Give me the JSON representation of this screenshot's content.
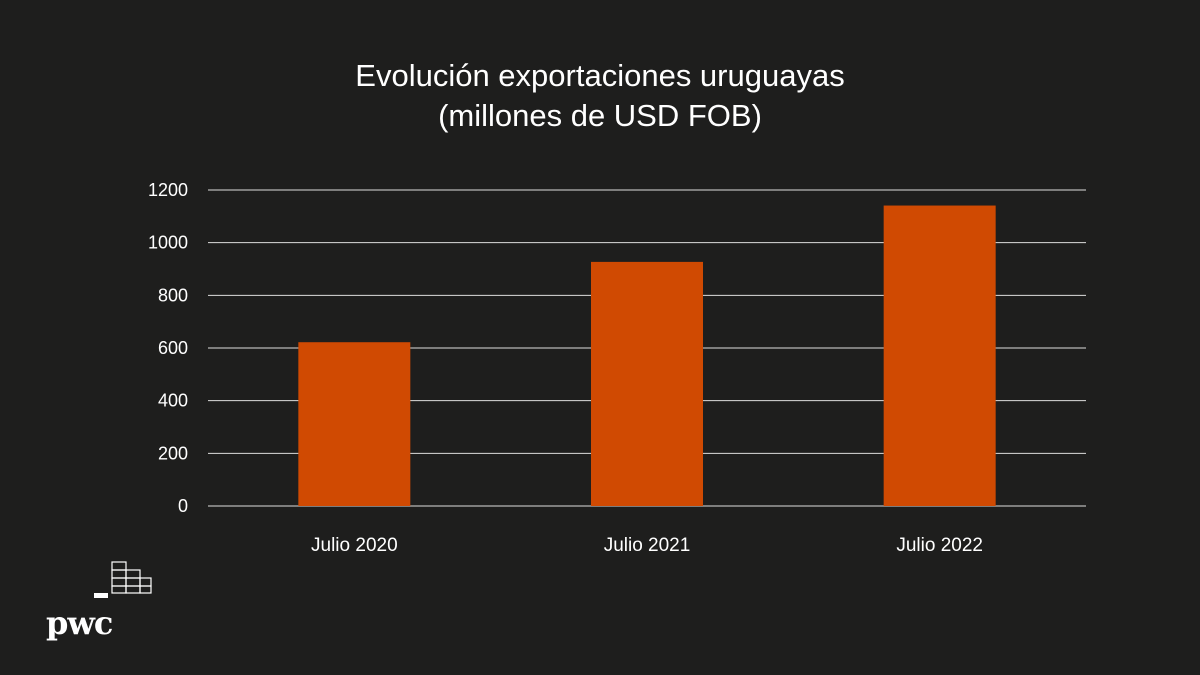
{
  "chart_data": {
    "type": "bar",
    "title": "Evolución exportaciones uruguayas",
    "subtitle": "(millones de USD FOB)",
    "categories": [
      "Julio 2020",
      "Julio 2021",
      "Julio 2022"
    ],
    "values": [
      622,
      927,
      1141
    ],
    "ylim": [
      0,
      1200
    ],
    "yticks": [
      0,
      200,
      400,
      600,
      800,
      1000,
      1200
    ],
    "grid": true,
    "legend": "none",
    "bar_color": "#d04a02",
    "grid_color": "#ffffff"
  },
  "branding": {
    "logo_text": "pwc",
    "logo_icon": "pwc-building-blocks-icon",
    "logo_color": "#ffffff"
  }
}
